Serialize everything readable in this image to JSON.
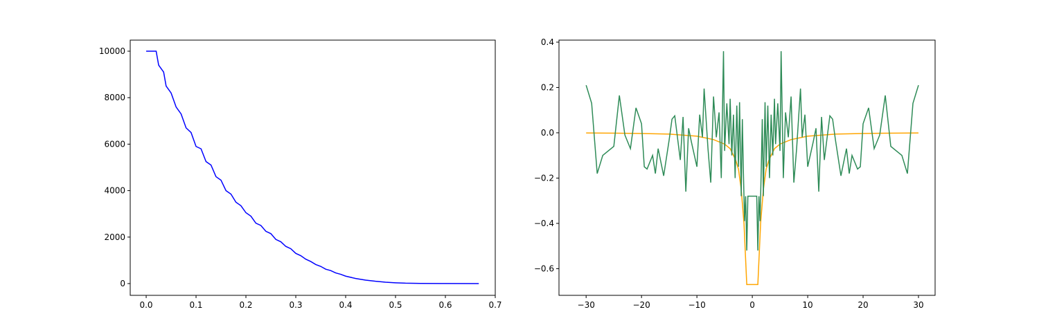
{
  "chart_data": [
    {
      "type": "line",
      "x": [
        0,
        0.02,
        0.025,
        0.035,
        0.04,
        0.05,
        0.06,
        0.07,
        0.08,
        0.09,
        0.1,
        0.11,
        0.12,
        0.13,
        0.14,
        0.15,
        0.16,
        0.17,
        0.18,
        0.19,
        0.2,
        0.21,
        0.22,
        0.23,
        0.24,
        0.25,
        0.26,
        0.27,
        0.28,
        0.29,
        0.3,
        0.31,
        0.32,
        0.33,
        0.34,
        0.35,
        0.36,
        0.37,
        0.38,
        0.39,
        0.4,
        0.42,
        0.44,
        0.46,
        0.48,
        0.5,
        0.52,
        0.55,
        0.6,
        0.667
      ],
      "series": [
        {
          "color": "#0000ff",
          "values": [
            10000,
            10000,
            9400,
            9100,
            8500,
            8200,
            7600,
            7300,
            6700,
            6500,
            5900,
            5800,
            5250,
            5100,
            4600,
            4450,
            4000,
            3850,
            3500,
            3350,
            3050,
            2900,
            2600,
            2500,
            2250,
            2150,
            1900,
            1800,
            1600,
            1500,
            1300,
            1200,
            1050,
            950,
            820,
            740,
            620,
            560,
            460,
            400,
            320,
            220,
            150,
            100,
            60,
            35,
            18,
            8,
            2,
            0
          ]
        }
      ],
      "xlim": [
        -0.032,
        0.7
      ],
      "xticks": [
        {
          "value": 0,
          "label": "0.0"
        },
        0.1,
        0.2,
        0.3,
        0.4,
        0.5,
        0.6,
        0.7
      ],
      "ylim": [
        -506,
        10476
      ],
      "yticks": [
        0,
        2000,
        4000,
        6000,
        8000,
        10000
      ]
    },
    {
      "type": "line",
      "series": [
        {
          "color": "#ffa500",
          "x": [
            -30,
            -25,
            -20,
            -15,
            -10,
            -7,
            -5,
            -4,
            -3,
            -2.5,
            -2,
            -1.5,
            -1,
            1,
            1.5,
            2,
            2.5,
            3,
            4,
            5,
            7,
            10,
            15,
            20,
            25,
            30
          ],
          "values": [
            -0.001,
            -0.0015,
            -0.003,
            -0.006,
            -0.015,
            -0.03,
            -0.05,
            -0.07,
            -0.12,
            -0.16,
            -0.25,
            -0.4,
            -0.67,
            -0.67,
            -0.4,
            -0.25,
            -0.16,
            -0.12,
            -0.07,
            -0.05,
            -0.03,
            -0.015,
            -0.006,
            -0.003,
            -0.0015,
            -0.001
          ]
        },
        {
          "color": "#2e8b57",
          "x": [
            -30,
            -29,
            -28,
            -27,
            -25,
            -24,
            -23,
            -22,
            -21,
            -20,
            -19.5,
            -19,
            -18,
            -17.5,
            -17,
            -16,
            -15,
            -14.5,
            -14,
            -13,
            -12.5,
            -12,
            -11.5,
            -11,
            -10,
            -9.5,
            -9,
            -8.7,
            -8,
            -7.5,
            -7,
            -6.5,
            -6,
            -5.6,
            -5.2,
            -5,
            -4.6,
            -4.2,
            -4,
            -3.7,
            -3.4,
            -3.1,
            -2.8,
            -2.5,
            -2.3,
            -2,
            -1.8,
            -1.6,
            -1.4,
            -1.2,
            -1,
            -0.8,
            0.8,
            1,
            1.2,
            1.4,
            1.6,
            1.8,
            2,
            2.3,
            2.5,
            2.8,
            3.1,
            3.4,
            3.7,
            4,
            4.2,
            4.6,
            5,
            5.2,
            5.6,
            6,
            6.5,
            7,
            7.5,
            8,
            8.7,
            9,
            9.5,
            10,
            11,
            11.5,
            12,
            12.5,
            13,
            14,
            14.5,
            15,
            16,
            17,
            17.5,
            18,
            19,
            19.5,
            20,
            21,
            22,
            23,
            24,
            25,
            27,
            28,
            29,
            30
          ],
          "values": [
            0.21,
            0.13,
            -0.18,
            -0.1,
            -0.06,
            0.165,
            -0.01,
            -0.07,
            0.11,
            0.04,
            -0.15,
            -0.16,
            -0.1,
            -0.18,
            -0.07,
            -0.19,
            -0.03,
            0.06,
            0.075,
            -0.12,
            0.07,
            -0.26,
            0.02,
            -0.04,
            -0.15,
            0.08,
            -0.02,
            0.195,
            -0.07,
            -0.22,
            0.16,
            -0.02,
            0.09,
            -0.2,
            0.36,
            -0.08,
            0.13,
            -0.05,
            0.15,
            -0.1,
            0.08,
            -0.2,
            0.12,
            -0.15,
            0.135,
            -0.28,
            0.06,
            -0.18,
            -0.39,
            -0.28,
            -0.52,
            -0.28,
            -0.28,
            -0.52,
            -0.28,
            -0.39,
            -0.18,
            0.06,
            -0.28,
            0.135,
            -0.15,
            0.12,
            -0.2,
            0.08,
            -0.1,
            0.15,
            -0.05,
            0.13,
            -0.08,
            0.36,
            -0.2,
            0.09,
            -0.02,
            0.16,
            -0.22,
            -0.07,
            0.195,
            -0.02,
            0.08,
            -0.15,
            -0.04,
            0.02,
            -0.26,
            0.07,
            -0.12,
            0.075,
            0.06,
            -0.03,
            -0.19,
            -0.07,
            -0.18,
            -0.1,
            -0.16,
            -0.15,
            0.04,
            0.11,
            -0.07,
            -0.01,
            0.165,
            -0.06,
            -0.1,
            -0.18,
            0.13,
            0.21
          ]
        }
      ],
      "xlim": [
        -34.9,
        33
      ],
      "xticks": [
        {
          "value": -30,
          "label": "−30"
        },
        {
          "value": -20,
          "label": "−20"
        },
        {
          "value": -10,
          "label": "−10"
        },
        0,
        10,
        20,
        30
      ],
      "ylim": [
        -0.7176,
        0.409
      ],
      "yticks": [
        {
          "value": -0.6,
          "label": "−0.6"
        },
        {
          "value": -0.4,
          "label": "−0.4"
        },
        {
          "value": -0.2,
          "label": "−0.2"
        },
        {
          "value": 0,
          "label": "0.0"
        },
        0.2,
        0.4
      ]
    }
  ]
}
